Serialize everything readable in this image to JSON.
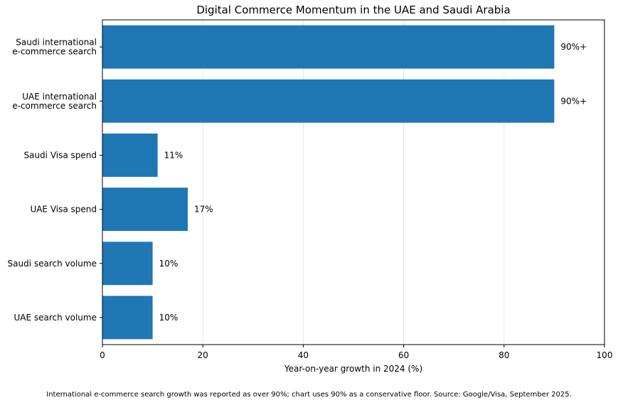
{
  "chart_data": {
    "type": "bar",
    "orientation": "horizontal",
    "title": "Digital Commerce Momentum in the UAE and Saudi Arabia",
    "xlabel": "Year-on-year growth in 2024 (%)",
    "ylabel": "",
    "xlim": [
      0,
      100
    ],
    "xticks": [
      0,
      20,
      40,
      60,
      80,
      100
    ],
    "grid": "vertical",
    "categories": [
      "Saudi international\ne-commerce search",
      "UAE international\ne-commerce search",
      "Saudi Visa spend",
      "UAE Visa spend",
      "Saudi search volume",
      "UAE search volume"
    ],
    "values": [
      90,
      90,
      11,
      17,
      10,
      10
    ],
    "data_labels": [
      "90%+",
      "90%+",
      "11%",
      "17%",
      "10%",
      "10%"
    ],
    "bar_color": "#1f77b4"
  },
  "footnote": "International e-commerce search growth was reported as over 90%; chart uses 90% as a conservative floor. Source: Google/Visa, September 2025."
}
